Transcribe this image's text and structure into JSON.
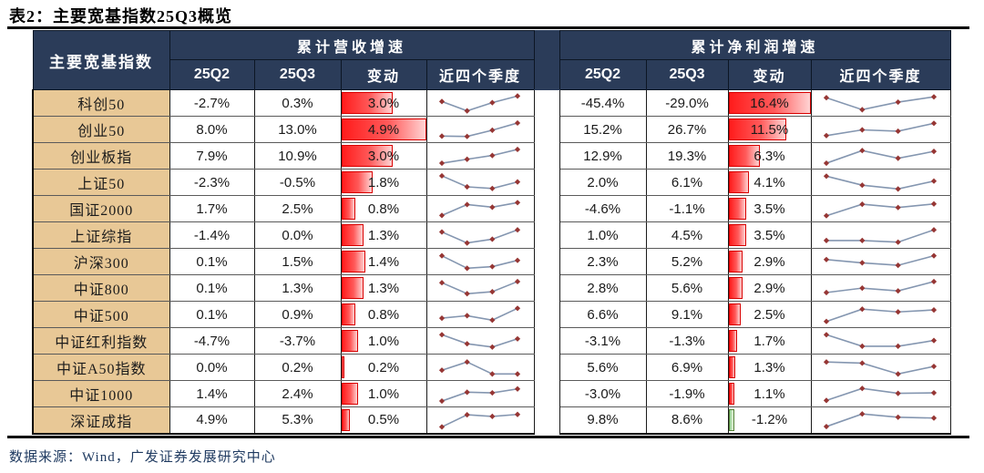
{
  "title": "表2：主要宽基指数25Q3概览",
  "source": "数据来源：Wind，广发证券发展研究中心",
  "colors": {
    "header_bg": "#2b3c59",
    "index_label_bg": "#e8c896",
    "bar_positive": "#ff1c1c",
    "bar_positive_border": "#d90000",
    "bar_negative": "#8fd18f",
    "bar_negative_border": "#538135",
    "sparkline_line": "#8496b0",
    "sparkline_marker": "#963634",
    "source_text": "#1f3a60"
  },
  "table": {
    "index_col_header": "主要宽基指数",
    "groups": [
      {
        "label": "累计营收增速",
        "columns": [
          "25Q2",
          "25Q3",
          "变动",
          "近四个季度"
        ]
      },
      {
        "label": "累计净利润增速",
        "columns": [
          "25Q2",
          "25Q3",
          "变动",
          "近四个季度"
        ]
      }
    ],
    "bar_scale": {
      "revenue_max": 4.9,
      "profit_max": 16.4
    },
    "rows": [
      {
        "name": "科创50",
        "rev": {
          "q2": "-2.7%",
          "q3": "0.3%",
          "chg": 3.0,
          "chg_label": "3.0%"
        },
        "rev_spark": [
          0.62,
          0.05,
          0.55,
          0.95
        ],
        "profit": {
          "q2": "-45.4%",
          "q3": "-29.0%",
          "chg": 16.4,
          "chg_label": "16.4%"
        },
        "profit_spark": [
          0.85,
          0.12,
          0.58,
          0.9
        ]
      },
      {
        "name": "创业50",
        "rev": {
          "q2": "8.0%",
          "q3": "13.0%",
          "chg": 4.9,
          "chg_label": "4.9%"
        },
        "rev_spark": [
          0.12,
          0.1,
          0.48,
          0.92
        ],
        "profit": {
          "q2": "15.2%",
          "q3": "26.7%",
          "chg": 11.5,
          "chg_label": "11.5%"
        },
        "profit_spark": [
          0.15,
          0.5,
          0.42,
          0.9
        ]
      },
      {
        "name": "创业板指",
        "rev": {
          "q2": "7.9%",
          "q3": "10.9%",
          "chg": 3.0,
          "chg_label": "3.0%"
        },
        "rev_spark": [
          0.08,
          0.32,
          0.55,
          0.92
        ],
        "profit": {
          "q2": "12.9%",
          "q3": "19.3%",
          "chg": 6.3,
          "chg_label": "6.3%"
        },
        "profit_spark": [
          0.08,
          0.85,
          0.38,
          0.8
        ]
      },
      {
        "name": "上证50",
        "rev": {
          "q2": "-2.3%",
          "q3": "-0.5%",
          "chg": 1.8,
          "chg_label": "1.8%"
        },
        "rev_spark": [
          0.92,
          0.25,
          0.15,
          0.55
        ],
        "profit": {
          "q2": "2.0%",
          "q3": "6.1%",
          "chg": 4.1,
          "chg_label": "4.1%"
        },
        "profit_spark": [
          0.9,
          0.35,
          0.12,
          0.6
        ]
      },
      {
        "name": "国证2000",
        "rev": {
          "q2": "1.7%",
          "q3": "2.5%",
          "chg": 0.8,
          "chg_label": "0.8%"
        },
        "rev_spark": [
          0.12,
          0.78,
          0.62,
          0.9
        ],
        "profit": {
          "q2": "-4.6%",
          "q3": "-1.1%",
          "chg": 3.5,
          "chg_label": "3.5%"
        },
        "profit_spark": [
          0.1,
          0.8,
          0.6,
          0.82
        ]
      },
      {
        "name": "上证综指",
        "rev": {
          "q2": "-1.4%",
          "q3": "0.0%",
          "chg": 1.3,
          "chg_label": "1.3%"
        },
        "rev_spark": [
          0.72,
          0.05,
          0.28,
          0.85
        ],
        "profit": {
          "q2": "1.0%",
          "q3": "4.5%",
          "chg": 3.5,
          "chg_label": "3.5%"
        },
        "profit_spark": [
          0.2,
          0.2,
          0.1,
          0.85
        ]
      },
      {
        "name": "沪深300",
        "rev": {
          "q2": "0.1%",
          "q3": "1.5%",
          "chg": 1.4,
          "chg_label": "1.4%"
        },
        "rev_spark": [
          0.88,
          0.12,
          0.22,
          0.6
        ],
        "profit": {
          "q2": "2.3%",
          "q3": "5.2%",
          "chg": 2.9,
          "chg_label": "2.9%"
        },
        "profit_spark": [
          0.65,
          0.45,
          0.3,
          0.88
        ]
      },
      {
        "name": "中证800",
        "rev": {
          "q2": "0.1%",
          "q3": "1.3%",
          "chg": 1.3,
          "chg_label": "1.3%"
        },
        "rev_spark": [
          0.85,
          0.18,
          0.3,
          0.92
        ],
        "profit": {
          "q2": "2.8%",
          "q3": "5.6%",
          "chg": 2.9,
          "chg_label": "2.9%"
        },
        "profit_spark": [
          0.25,
          0.52,
          0.35,
          0.92
        ]
      },
      {
        "name": "中证500",
        "rev": {
          "q2": "0.1%",
          "q3": "0.9%",
          "chg": 0.8,
          "chg_label": "0.8%"
        },
        "rev_spark": [
          0.3,
          0.45,
          0.18,
          0.9
        ],
        "profit": {
          "q2": "6.6%",
          "q3": "9.1%",
          "chg": 2.5,
          "chg_label": "2.5%"
        },
        "profit_spark": [
          0.1,
          0.85,
          0.68,
          0.8
        ]
      },
      {
        "name": "中证红利指数",
        "rev": {
          "q2": "-4.7%",
          "q3": "-3.7%",
          "chg": 1.0,
          "chg_label": "1.0%"
        },
        "rev_spark": [
          0.9,
          0.35,
          0.15,
          0.65
        ],
        "profit": {
          "q2": "-3.1%",
          "q3": "-1.3%",
          "chg": 1.7,
          "chg_label": "1.7%"
        },
        "profit_spark": [
          0.9,
          0.2,
          0.2,
          0.55
        ]
      },
      {
        "name": "中证A50指数",
        "rev": {
          "q2": "0.0%",
          "q3": "0.2%",
          "chg": 0.2,
          "chg_label": "0.2%"
        },
        "rev_spark": [
          0.35,
          0.85,
          0.12,
          0.12
        ],
        "profit": {
          "q2": "5.6%",
          "q3": "6.9%",
          "chg": 1.3,
          "chg_label": "1.3%"
        },
        "profit_spark": [
          0.85,
          0.78,
          0.12,
          0.58
        ]
      },
      {
        "name": "中证1000",
        "rev": {
          "q2": "1.4%",
          "q3": "2.4%",
          "chg": 1.0,
          "chg_label": "1.0%"
        },
        "rev_spark": [
          0.08,
          0.62,
          0.58,
          0.82
        ],
        "profit": {
          "q2": "-3.0%",
          "q3": "-1.9%",
          "chg": 1.1,
          "chg_label": "1.1%"
        },
        "profit_spark": [
          0.12,
          0.85,
          0.55,
          0.58
        ]
      },
      {
        "name": "深证成指",
        "rev": {
          "q2": "4.9%",
          "q3": "5.3%",
          "chg": 0.5,
          "chg_label": "0.5%"
        },
        "rev_spark": [
          0.06,
          0.8,
          0.7,
          0.82
        ],
        "profit": {
          "q2": "9.8%",
          "q3": "8.6%",
          "chg": -1.2,
          "chg_label": "-1.2%"
        },
        "profit_spark": [
          0.08,
          0.85,
          0.65,
          0.6
        ]
      }
    ]
  }
}
